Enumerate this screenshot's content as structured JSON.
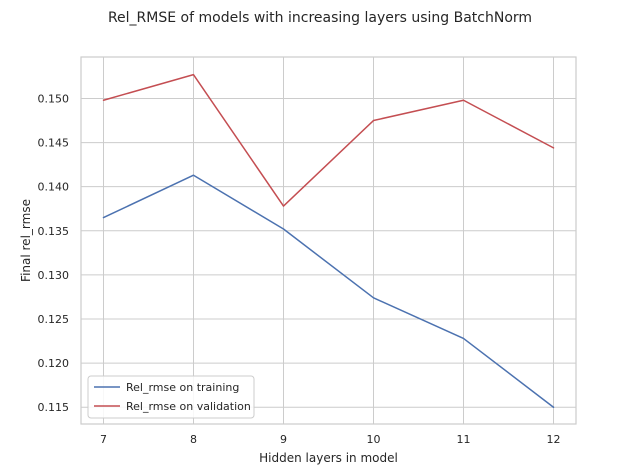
{
  "chart_data": {
    "type": "line",
    "title": "Rel_RMSE of models with increasing layers using BatchNorm",
    "xlabel": "Hidden layers in model",
    "ylabel": "Final rel_rmse",
    "x": [
      7,
      8,
      9,
      10,
      11,
      12
    ],
    "x_tick_labels": [
      "7",
      "8",
      "9",
      "10",
      "11",
      "12"
    ],
    "y_ticks": [
      0.115,
      0.12,
      0.125,
      0.13,
      0.135,
      0.14,
      0.145,
      0.15
    ],
    "y_tick_labels": [
      "0.115",
      "0.120",
      "0.125",
      "0.130",
      "0.135",
      "0.140",
      "0.145",
      "0.150"
    ],
    "xlim": [
      6.75,
      12.25
    ],
    "ylim": [
      0.1131,
      0.1547
    ],
    "grid": true,
    "legend_position": "lower-left",
    "series": [
      {
        "name": "Rel_rmse on training",
        "color": "#4c72b0",
        "values": [
          0.1365,
          0.1413,
          0.1352,
          0.1274,
          0.1228,
          0.115
        ]
      },
      {
        "name": "Rel_rmse on validation",
        "color": "#c44e52",
        "values": [
          0.1498,
          0.1527,
          0.1378,
          0.1475,
          0.1498,
          0.1444
        ]
      }
    ]
  }
}
